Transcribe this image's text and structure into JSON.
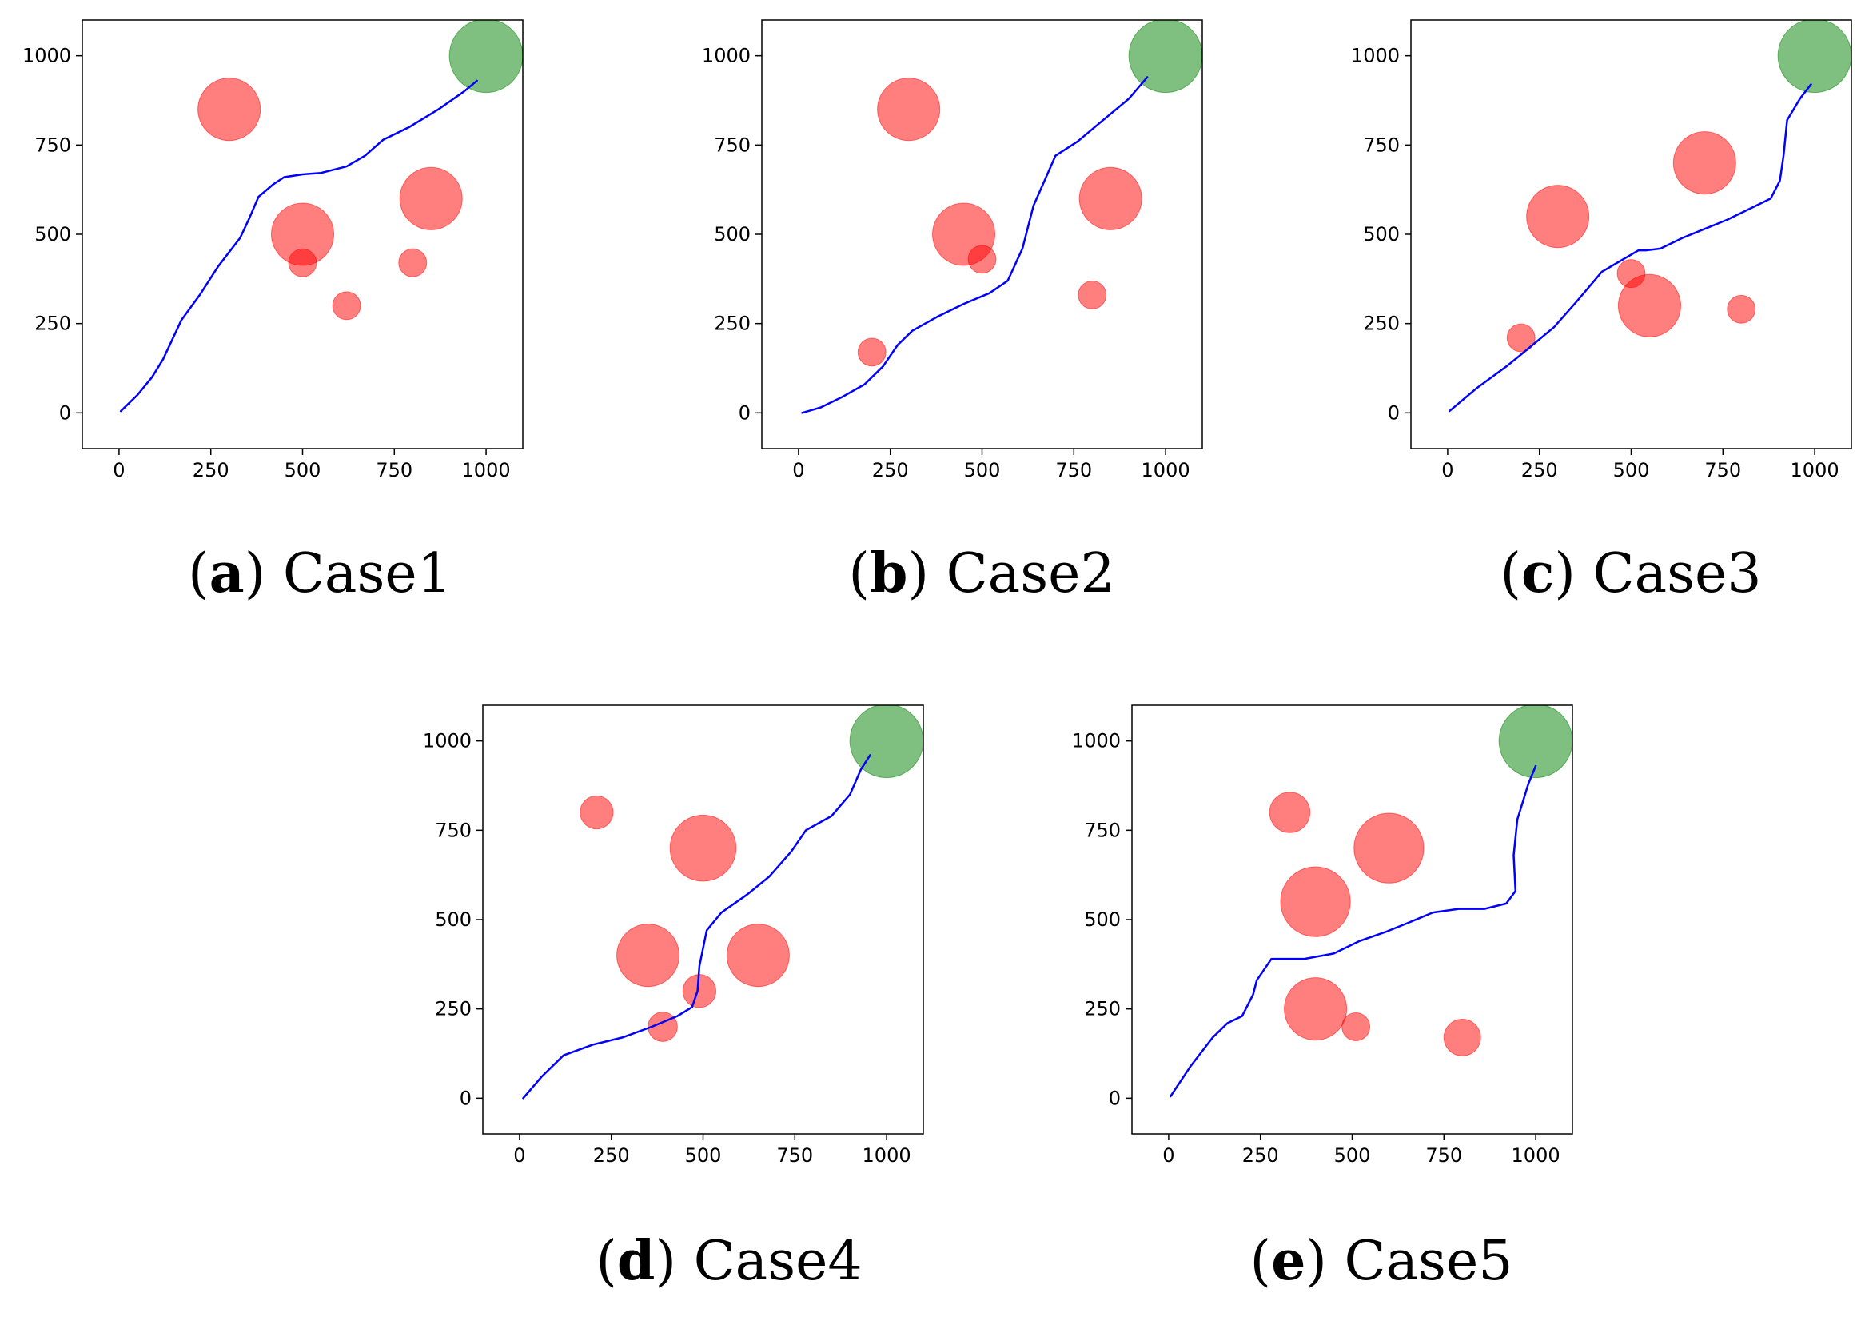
{
  "colors": {
    "path": "#0000ff",
    "obstacle": "#ff0000",
    "goal": "#008000",
    "frame": "#000000"
  },
  "axes": {
    "xlim": [
      -100,
      1100
    ],
    "ylim": [
      -100,
      1100
    ],
    "xticks": [
      0,
      250,
      500,
      750,
      1000
    ],
    "yticks": [
      0,
      250,
      500,
      750,
      1000
    ],
    "xtick_labels": [
      "0",
      "250",
      "500",
      "750",
      "1000"
    ],
    "ytick_labels": [
      "0",
      "250",
      "500",
      "750",
      "1000"
    ]
  },
  "chart_data": [
    {
      "type": "scatter",
      "letter": "a",
      "caption": "Case1",
      "goal": {
        "x": 1000,
        "y": 1000,
        "r": 100
      },
      "obstacles": [
        {
          "x": 300,
          "y": 850,
          "r": 85
        },
        {
          "x": 500,
          "y": 500,
          "r": 85
        },
        {
          "x": 850,
          "y": 600,
          "r": 85
        },
        {
          "x": 500,
          "y": 420,
          "r": 38
        },
        {
          "x": 620,
          "y": 300,
          "r": 38
        },
        {
          "x": 800,
          "y": 420,
          "r": 38
        }
      ],
      "path": [
        [
          5,
          5
        ],
        [
          50,
          50
        ],
        [
          90,
          100
        ],
        [
          120,
          150
        ],
        [
          170,
          260
        ],
        [
          220,
          330
        ],
        [
          270,
          410
        ],
        [
          330,
          490
        ],
        [
          355,
          545
        ],
        [
          380,
          605
        ],
        [
          420,
          640
        ],
        [
          450,
          660
        ],
        [
          500,
          668
        ],
        [
          550,
          672
        ],
        [
          620,
          690
        ],
        [
          670,
          720
        ],
        [
          720,
          765
        ],
        [
          790,
          800
        ],
        [
          870,
          850
        ],
        [
          940,
          900
        ],
        [
          975,
          930
        ]
      ]
    },
    {
      "type": "scatter",
      "letter": "b",
      "caption": "Case2",
      "goal": {
        "x": 1000,
        "y": 1000,
        "r": 100
      },
      "obstacles": [
        {
          "x": 300,
          "y": 850,
          "r": 85
        },
        {
          "x": 450,
          "y": 500,
          "r": 85
        },
        {
          "x": 850,
          "y": 600,
          "r": 85
        },
        {
          "x": 500,
          "y": 430,
          "r": 38
        },
        {
          "x": 200,
          "y": 170,
          "r": 38
        },
        {
          "x": 800,
          "y": 330,
          "r": 38
        }
      ],
      "path": [
        [
          10,
          0
        ],
        [
          60,
          15
        ],
        [
          120,
          45
        ],
        [
          180,
          80
        ],
        [
          230,
          130
        ],
        [
          270,
          190
        ],
        [
          310,
          230
        ],
        [
          380,
          270
        ],
        [
          450,
          305
        ],
        [
          520,
          335
        ],
        [
          570,
          370
        ],
        [
          610,
          460
        ],
        [
          640,
          580
        ],
        [
          670,
          650
        ],
        [
          700,
          720
        ],
        [
          760,
          760
        ],
        [
          830,
          820
        ],
        [
          900,
          880
        ],
        [
          950,
          940
        ]
      ]
    },
    {
      "type": "scatter",
      "letter": "c",
      "caption": "Case3",
      "goal": {
        "x": 1000,
        "y": 1000,
        "r": 100
      },
      "obstacles": [
        {
          "x": 300,
          "y": 550,
          "r": 85
        },
        {
          "x": 700,
          "y": 700,
          "r": 85
        },
        {
          "x": 550,
          "y": 300,
          "r": 85
        },
        {
          "x": 500,
          "y": 390,
          "r": 38
        },
        {
          "x": 200,
          "y": 210,
          "r": 38
        },
        {
          "x": 800,
          "y": 290,
          "r": 38
        }
      ],
      "path": [
        [
          5,
          5
        ],
        [
          80,
          70
        ],
        [
          160,
          130
        ],
        [
          220,
          180
        ],
        [
          290,
          240
        ],
        [
          350,
          310
        ],
        [
          420,
          395
        ],
        [
          470,
          425
        ],
        [
          520,
          455
        ],
        [
          540,
          455
        ],
        [
          580,
          460
        ],
        [
          640,
          490
        ],
        [
          700,
          515
        ],
        [
          760,
          540
        ],
        [
          820,
          570
        ],
        [
          880,
          600
        ],
        [
          905,
          650
        ],
        [
          915,
          720
        ],
        [
          925,
          820
        ],
        [
          960,
          880
        ],
        [
          990,
          920
        ]
      ]
    },
    {
      "type": "scatter",
      "letter": "d",
      "caption": "Case4",
      "goal": {
        "x": 1000,
        "y": 1000,
        "r": 100
      },
      "obstacles": [
        {
          "x": 210,
          "y": 800,
          "r": 45
        },
        {
          "x": 500,
          "y": 700,
          "r": 90
        },
        {
          "x": 350,
          "y": 400,
          "r": 85
        },
        {
          "x": 650,
          "y": 400,
          "r": 85
        },
        {
          "x": 490,
          "y": 300,
          "r": 45
        },
        {
          "x": 390,
          "y": 200,
          "r": 40
        }
      ],
      "path": [
        [
          10,
          0
        ],
        [
          60,
          60
        ],
        [
          120,
          120
        ],
        [
          200,
          150
        ],
        [
          280,
          170
        ],
        [
          360,
          200
        ],
        [
          430,
          230
        ],
        [
          470,
          255
        ],
        [
          485,
          300
        ],
        [
          490,
          370
        ],
        [
          510,
          470
        ],
        [
          550,
          520
        ],
        [
          620,
          570
        ],
        [
          680,
          620
        ],
        [
          740,
          690
        ],
        [
          780,
          750
        ],
        [
          850,
          790
        ],
        [
          900,
          850
        ],
        [
          930,
          920
        ],
        [
          955,
          960
        ]
      ]
    },
    {
      "type": "scatter",
      "letter": "e",
      "caption": "Case5",
      "goal": {
        "x": 1000,
        "y": 1000,
        "r": 100
      },
      "obstacles": [
        {
          "x": 330,
          "y": 800,
          "r": 55
        },
        {
          "x": 600,
          "y": 700,
          "r": 95
        },
        {
          "x": 400,
          "y": 550,
          "r": 95
        },
        {
          "x": 400,
          "y": 250,
          "r": 85
        },
        {
          "x": 510,
          "y": 200,
          "r": 38
        },
        {
          "x": 800,
          "y": 170,
          "r": 50
        }
      ],
      "path": [
        [
          5,
          5
        ],
        [
          60,
          90
        ],
        [
          120,
          170
        ],
        [
          160,
          210
        ],
        [
          200,
          230
        ],
        [
          230,
          290
        ],
        [
          240,
          330
        ],
        [
          280,
          390
        ],
        [
          320,
          390
        ],
        [
          370,
          390
        ],
        [
          450,
          405
        ],
        [
          520,
          440
        ],
        [
          590,
          465
        ],
        [
          650,
          490
        ],
        [
          720,
          520
        ],
        [
          790,
          530
        ],
        [
          860,
          530
        ],
        [
          920,
          545
        ],
        [
          945,
          580
        ],
        [
          940,
          680
        ],
        [
          950,
          780
        ],
        [
          980,
          880
        ],
        [
          1000,
          930
        ]
      ]
    }
  ]
}
